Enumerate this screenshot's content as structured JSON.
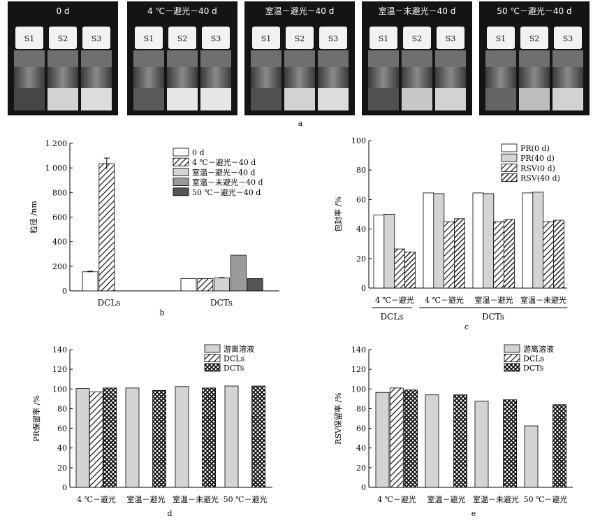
{
  "panel_a": {
    "letter": "a",
    "photos": [
      {
        "title": "0 d",
        "caps": [
          "S1",
          "S2",
          "S3"
        ],
        "tone": [
          0.15,
          0.85,
          0.9
        ]
      },
      {
        "title": "4 ℃－避光－40 d",
        "caps": [
          "S1",
          "S2",
          "S3"
        ],
        "tone": [
          0.25,
          0.95,
          0.95
        ]
      },
      {
        "title": "室温－避光－40 d",
        "caps": [
          "S1",
          "S2",
          "S3"
        ],
        "tone": [
          0.2,
          0.85,
          0.9
        ]
      },
      {
        "title": "室温－未避光－40 d",
        "caps": [
          "S1",
          "S2",
          "S3"
        ],
        "tone": [
          0.2,
          0.8,
          0.85
        ]
      },
      {
        "title": "50 ℃－避光－40 d",
        "caps": [
          "S1",
          "S2",
          "S3"
        ],
        "tone": [
          0.3,
          0.75,
          0.85
        ]
      }
    ]
  },
  "colors": {
    "white": "#ffffff",
    "light": "#d4d4d4",
    "mid": "#9a9a9a",
    "dark": "#555555",
    "photo_bg": "#141414"
  },
  "chart_data": [
    {
      "panel": "b",
      "type": "bar",
      "ylabel": "粒径 /nm",
      "ylim": [
        0,
        1200
      ],
      "yticks": [
        "0",
        "200",
        "400",
        "600",
        "800",
        "1 000",
        "1 200"
      ],
      "categories": [
        "DCLs",
        "DCTs"
      ],
      "legend_placement": "top-right",
      "series": [
        {
          "name": "0 d",
          "fill": "white",
          "values": [
            155,
            100
          ],
          "errors": [
            5,
            0
          ]
        },
        {
          "name": "4 ℃－避光－40 d",
          "fill": "hatch",
          "values": [
            1035,
            100
          ],
          "errors": [
            45,
            0
          ]
        },
        {
          "name": "室温－避光－40 d",
          "fill": "light",
          "values": [
            null,
            105
          ],
          "errors": [
            0,
            3
          ]
        },
        {
          "name": "室温－未避光－40 d",
          "fill": "mid",
          "values": [
            null,
            290
          ],
          "errors": [
            0,
            0
          ]
        },
        {
          "name": "50 ℃－避光－40 d",
          "fill": "dark",
          "values": [
            null,
            100
          ],
          "errors": [
            0,
            0
          ]
        }
      ]
    },
    {
      "panel": "c",
      "type": "bar",
      "ylabel": "包封率 /%",
      "ylim": [
        0,
        100
      ],
      "yticks": [
        "0",
        "20",
        "40",
        "60",
        "80",
        "100"
      ],
      "categories": [
        "4 ℃－避光",
        "4 ℃－避光",
        "室温－避光",
        "室温－未避光"
      ],
      "groups": [
        {
          "label": "DCLs",
          "span": [
            0,
            0
          ]
        },
        {
          "label": "DCTs",
          "span": [
            1,
            3
          ]
        }
      ],
      "legend_placement": "top-right",
      "series": [
        {
          "name": "PR(0 d)",
          "fill": "white",
          "values": [
            49.5,
            64.5,
            64.5,
            64.5
          ]
        },
        {
          "name": "PR(40 d)",
          "fill": "light",
          "values": [
            50,
            64,
            64,
            65
          ]
        },
        {
          "name": "RSV(0 d)",
          "fill": "hatch",
          "values": [
            26.5,
            45,
            45,
            45
          ]
        },
        {
          "name": "RSV(40 d)",
          "fill": "dhatch",
          "values": [
            24.5,
            47,
            46.5,
            46
          ]
        }
      ]
    },
    {
      "panel": "d",
      "type": "bar",
      "ylabel": "PR保留率 /%",
      "ylim": [
        0,
        140
      ],
      "yticks": [
        "0",
        "20",
        "40",
        "60",
        "80",
        "100",
        "120",
        "140"
      ],
      "categories": [
        "4 ℃－避光",
        "室温－避光",
        "室温－未避光",
        "50 ℃－避光"
      ],
      "legend_placement": "top-right",
      "series": [
        {
          "name": "游离溶液",
          "fill": "light",
          "values": [
            100.5,
            101,
            102.5,
            103
          ]
        },
        {
          "name": "DCLs",
          "fill": "hatch",
          "values": [
            97,
            null,
            null,
            null
          ]
        },
        {
          "name": "DCTs",
          "fill": "cross",
          "values": [
            101,
            98.5,
            101,
            103
          ]
        }
      ]
    },
    {
      "panel": "e",
      "type": "bar",
      "ylabel": "RSV保留率 /%",
      "ylim": [
        0,
        140
      ],
      "yticks": [
        "0",
        "20",
        "40",
        "60",
        "80",
        "100",
        "120",
        "140"
      ],
      "categories": [
        "4 ℃－避光",
        "室温－避光",
        "室温－未避光",
        "50 ℃－避光"
      ],
      "legend_placement": "top-right",
      "series": [
        {
          "name": "游离溶液",
          "fill": "light",
          "values": [
            96.5,
            94,
            87.5,
            62.5
          ]
        },
        {
          "name": "DCLs",
          "fill": "hatch",
          "values": [
            101,
            null,
            null,
            null
          ]
        },
        {
          "name": "DCTs",
          "fill": "cross",
          "values": [
            99,
            94,
            89,
            84
          ]
        }
      ]
    }
  ]
}
